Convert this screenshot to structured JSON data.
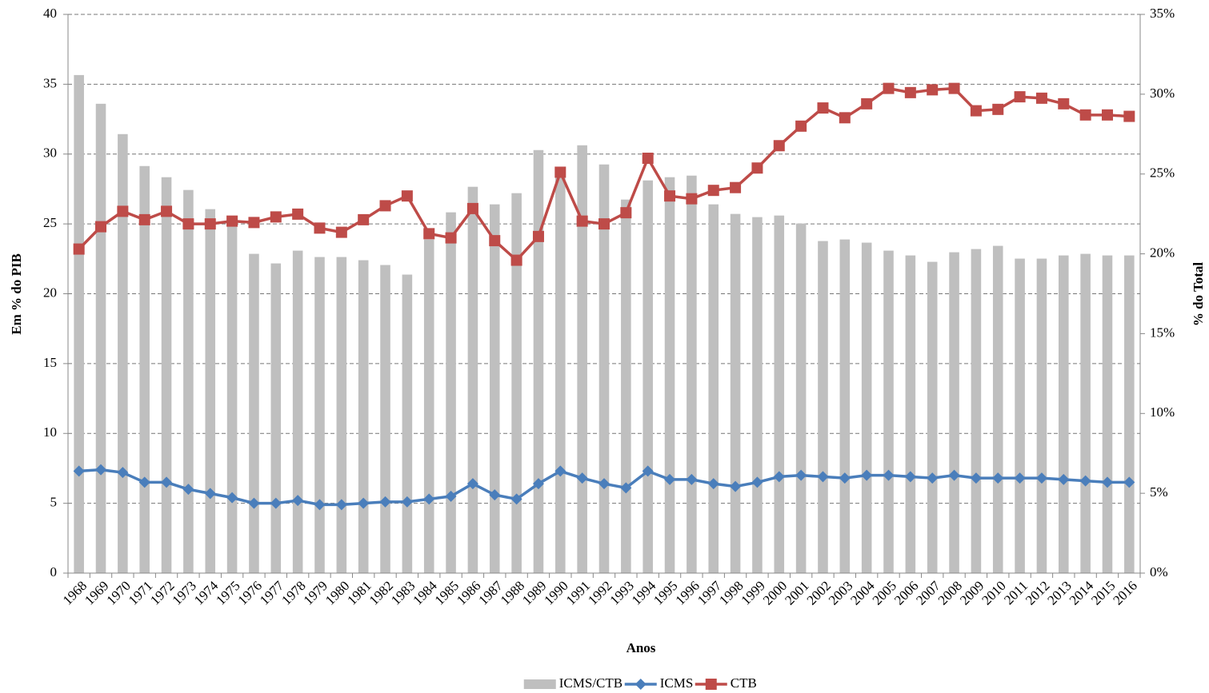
{
  "chart_data": {
    "type": "bar-line",
    "y_label": "Em % do PIB",
    "y2_label": "% do Total",
    "x_label": "Anos",
    "categories": [
      "1968",
      "1969",
      "1970",
      "1971",
      "1972",
      "1973",
      "1974",
      "1975",
      "1976",
      "1977",
      "1978",
      "1979",
      "1980",
      "1981",
      "1982",
      "1983",
      "1984",
      "1985",
      "1986",
      "1987",
      "1988",
      "1989",
      "1990",
      "1991",
      "1992",
      "1993",
      "1994",
      "1995",
      "1996",
      "1997",
      "1998",
      "1999",
      "2000",
      "2001",
      "2002",
      "2003",
      "2004",
      "2005",
      "2006",
      "2007",
      "2008",
      "2009",
      "2010",
      "2011",
      "2012",
      "2013",
      "2014",
      "2015",
      "2016"
    ],
    "series": [
      {
        "name": "ICMS/CTB",
        "type": "bar",
        "axis": "y2",
        "color": "#bfbfbf",
        "values": [
          31.2,
          29.4,
          27.5,
          25.5,
          24.8,
          24.0,
          22.8,
          21.9,
          20.0,
          19.4,
          20.2,
          19.8,
          19.8,
          19.6,
          19.3,
          18.7,
          20.9,
          22.6,
          24.2,
          23.1,
          23.8,
          26.5,
          25.1,
          26.8,
          25.6,
          23.4,
          24.6,
          24.8,
          24.9,
          23.1,
          22.5,
          22.3,
          22.4,
          21.9,
          20.8,
          20.9,
          20.7,
          20.2,
          19.9,
          19.5,
          20.1,
          20.3,
          20.5,
          19.7,
          19.7,
          19.9,
          20.0,
          19.9,
          19.9
        ]
      },
      {
        "name": "ICMS",
        "type": "line",
        "marker": "diamond",
        "color": "#4a7ebb",
        "values": [
          7.3,
          7.4,
          7.2,
          6.5,
          6.5,
          6.0,
          5.7,
          5.4,
          5.0,
          5.0,
          5.2,
          4.9,
          4.9,
          5.0,
          5.1,
          5.1,
          5.3,
          5.5,
          6.4,
          5.6,
          5.3,
          6.4,
          7.3,
          6.8,
          6.4,
          6.1,
          7.3,
          6.7,
          6.7,
          6.4,
          6.2,
          6.5,
          6.9,
          7.0,
          6.9,
          6.8,
          7.0,
          7.0,
          6.9,
          6.8,
          7.0,
          6.8,
          6.8,
          6.8,
          6.8,
          6.7,
          6.6,
          6.5,
          6.5
        ]
      },
      {
        "name": "CTB",
        "type": "line",
        "marker": "square",
        "color": "#be4b48",
        "values": [
          23.2,
          24.8,
          25.9,
          25.3,
          25.9,
          25.0,
          25.0,
          25.2,
          25.1,
          25.5,
          25.7,
          24.7,
          24.4,
          25.3,
          26.3,
          27.0,
          24.3,
          24.0,
          26.1,
          23.8,
          22.4,
          24.1,
          28.7,
          25.2,
          25.0,
          25.8,
          29.7,
          27.0,
          26.8,
          27.4,
          27.6,
          29.0,
          30.6,
          32.0,
          33.3,
          32.6,
          33.6,
          34.7,
          34.4,
          34.6,
          34.7,
          33.1,
          33.2,
          34.1,
          34.0,
          33.6,
          32.8,
          32.8,
          32.7
        ]
      }
    ],
    "ylim": [
      0,
      40
    ],
    "yticks": [
      0,
      5,
      10,
      15,
      20,
      25,
      30,
      35,
      40
    ],
    "y2lim": [
      0,
      35
    ],
    "y2ticks": [
      {
        "value": 0,
        "label": "0%"
      },
      {
        "value": 5,
        "label": "5%"
      },
      {
        "value": 10,
        "label": "10%"
      },
      {
        "value": 15,
        "label": "15%"
      },
      {
        "value": 20,
        "label": "20%"
      },
      {
        "value": 25,
        "label": "25%"
      },
      {
        "value": 30,
        "label": "30%"
      },
      {
        "value": 35,
        "label": "35%"
      }
    ],
    "grid": true,
    "legend": "bottom"
  }
}
